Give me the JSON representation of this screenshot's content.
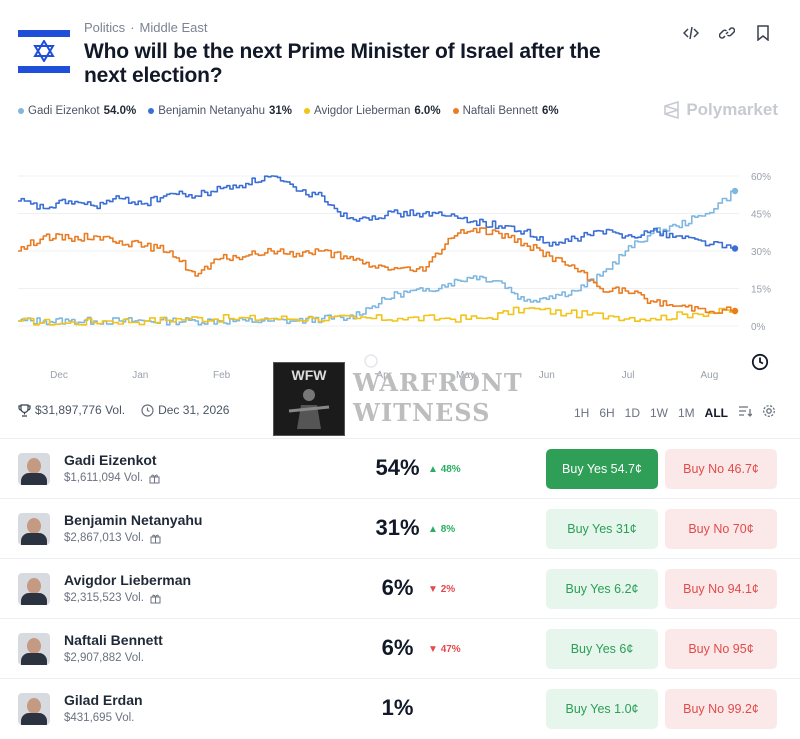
{
  "header": {
    "category": "Politics",
    "subcategory": "Middle East",
    "title": "Who will be the next Prime Minister of Israel after the next election?",
    "brand": "Polymarket"
  },
  "legend": [
    {
      "name": "Gadi Eizenkot",
      "value": "54.0%",
      "color": "#7fb7e0"
    },
    {
      "name": "Benjamin Netanyahu",
      "value": "31%",
      "color": "#3b6fd4"
    },
    {
      "name": "Avigdor Lieberman",
      "value": "6.0%",
      "color": "#f2c318"
    },
    {
      "name": "Naftali Bennett",
      "value": "6%",
      "color": "#ea7d23"
    }
  ],
  "chart_data": {
    "type": "line",
    "x_ticks": [
      "Dec",
      "Jan",
      "Feb",
      "Mar",
      "Apr",
      "May",
      "Jun",
      "Jul",
      "Aug"
    ],
    "y_ticks": [
      "60%",
      "45%",
      "30%",
      "15%",
      "0%"
    ],
    "ylim": [
      0,
      60
    ],
    "series": [
      {
        "name": "Gadi Eizenkot",
        "color": "#7fb7e0",
        "x": [
          0,
          0.3,
          0.6,
          0.9,
          1.2,
          1.5,
          1.8,
          2.1,
          2.4,
          2.7,
          3.0,
          3.3,
          3.6,
          3.9,
          4.2,
          4.5,
          4.8,
          5.1,
          5.4,
          5.7,
          6.0,
          6.3,
          6.6,
          6.9,
          7.2,
          7.5,
          7.8,
          8.1,
          8.5
        ],
        "values": [
          2,
          2,
          2,
          2,
          2,
          2,
          2,
          2,
          2,
          2,
          2,
          2,
          3,
          3,
          8,
          13,
          14,
          17,
          20,
          18,
          10,
          12,
          14,
          20,
          30,
          37,
          40,
          44,
          54
        ]
      },
      {
        "name": "Benjamin Netanyahu",
        "color": "#3b6fd4",
        "x": [
          0,
          0.3,
          0.6,
          0.9,
          1.2,
          1.5,
          1.8,
          2.1,
          2.4,
          2.7,
          3.0,
          3.3,
          3.6,
          3.9,
          4.2,
          4.5,
          4.8,
          5.1,
          5.4,
          5.7,
          6.0,
          6.3,
          6.6,
          6.9,
          7.2,
          7.5,
          7.8,
          8.1,
          8.5
        ],
        "values": [
          50,
          47,
          50,
          48,
          51,
          49,
          53,
          52,
          55,
          57,
          60,
          54,
          52,
          43,
          44,
          45,
          45,
          44,
          42,
          40,
          38,
          32,
          35,
          38,
          36,
          38,
          36,
          34,
          31
        ]
      },
      {
        "name": "Avigdor Lieberman",
        "color": "#f2c318",
        "x": [
          0,
          0.5,
          1.0,
          1.5,
          2.0,
          2.5,
          3.0,
          3.5,
          4.0,
          4.5,
          5.0,
          5.5,
          6.0,
          6.5,
          7.0,
          7.5,
          8.0,
          8.5
        ],
        "values": [
          2,
          1,
          2,
          2,
          3,
          3,
          3,
          3,
          3,
          3,
          3,
          3,
          7,
          5,
          4,
          3,
          5,
          6
        ]
      },
      {
        "name": "Naftali Bennett",
        "color": "#ea7d23",
        "x": [
          0,
          0.3,
          0.6,
          0.9,
          1.2,
          1.5,
          1.8,
          2.1,
          2.4,
          2.7,
          3.0,
          3.3,
          3.6,
          3.9,
          4.2,
          4.5,
          4.8,
          5.1,
          5.4,
          5.7,
          6.0,
          6.3,
          6.6,
          6.9,
          7.2,
          7.5,
          7.8,
          8.1,
          8.5
        ],
        "values": [
          30,
          36,
          35,
          36,
          34,
          32,
          30,
          20,
          27,
          28,
          30,
          29,
          30,
          27,
          24,
          23,
          22,
          35,
          39,
          37,
          33,
          28,
          23,
          15,
          14,
          10,
          8,
          7,
          6
        ]
      }
    ]
  },
  "meta": {
    "volume": "$31,897,776 Vol.",
    "end_date": "Dec 31, 2026"
  },
  "ranges": [
    "1H",
    "6H",
    "1D",
    "1W",
    "1M",
    "ALL"
  ],
  "watermark": {
    "box_text": "WFW",
    "line1": "WARFRONT",
    "line2": "WITNESS"
  },
  "outcomes": [
    {
      "name": "Gadi Eizenkot",
      "volume": "$1,611,094 Vol.",
      "gift": true,
      "percent": "54%",
      "change": "48%",
      "dir": "up",
      "yes": "Buy Yes 54.7¢",
      "no": "Buy No 46.7¢",
      "yes_selected": true
    },
    {
      "name": "Benjamin Netanyahu",
      "volume": "$2,867,013 Vol.",
      "gift": true,
      "percent": "31%",
      "change": "8%",
      "dir": "up",
      "yes": "Buy Yes 31¢",
      "no": "Buy No 70¢",
      "yes_selected": false
    },
    {
      "name": "Avigdor Lieberman",
      "volume": "$2,315,523 Vol.",
      "gift": true,
      "percent": "6%",
      "change": "2%",
      "dir": "down",
      "yes": "Buy Yes 6.2¢",
      "no": "Buy No 94.1¢",
      "yes_selected": false
    },
    {
      "name": "Naftali Bennett",
      "volume": "$2,907,882 Vol.",
      "gift": false,
      "percent": "6%",
      "change": "47%",
      "dir": "down",
      "yes": "Buy Yes 6¢",
      "no": "Buy No 95¢",
      "yes_selected": false
    },
    {
      "name": "Gilad Erdan",
      "volume": "$431,695 Vol.",
      "gift": false,
      "percent": "1%",
      "change": "",
      "dir": "",
      "yes": "Buy Yes 1.0¢",
      "no": "Buy No 99.2¢",
      "yes_selected": false
    }
  ]
}
